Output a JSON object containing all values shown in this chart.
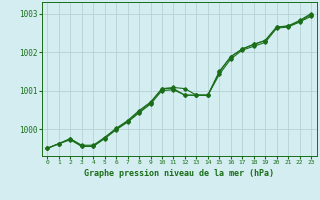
{
  "xlabel": "Graphe pression niveau de la mer (hPa)",
  "xlim": [
    -0.5,
    23.5
  ],
  "ylim": [
    999.3,
    1003.3
  ],
  "yticks": [
    1000,
    1001,
    1002,
    1003
  ],
  "xticks": [
    0,
    1,
    2,
    3,
    4,
    5,
    6,
    7,
    8,
    9,
    10,
    11,
    12,
    13,
    14,
    15,
    16,
    17,
    18,
    19,
    20,
    21,
    22,
    23
  ],
  "background_color": "#d4edf0",
  "grid_color": "#b0cdd0",
  "line_color": "#1a6e1a",
  "line1": {
    "x": [
      0,
      1,
      2,
      3,
      4,
      5,
      6,
      7,
      8,
      9,
      10,
      11,
      12,
      13,
      14,
      15,
      16,
      17,
      18,
      19,
      20,
      21,
      22,
      23
    ],
    "y": [
      999.5,
      999.62,
      999.75,
      999.58,
      999.58,
      999.78,
      1000.0,
      1000.2,
      1000.45,
      1000.68,
      1001.05,
      1001.08,
      1001.05,
      1000.88,
      1000.88,
      1001.5,
      1001.88,
      1002.08,
      1002.2,
      1002.3,
      1002.65,
      1002.68,
      1002.82,
      1003.0
    ]
  },
  "line2": {
    "x": [
      0,
      1,
      2,
      3,
      4,
      5,
      6,
      7,
      8,
      9,
      10,
      11,
      12,
      13,
      14,
      15,
      16,
      17,
      18,
      19,
      20,
      21,
      22,
      23
    ],
    "y": [
      999.5,
      999.62,
      999.72,
      999.55,
      999.55,
      999.75,
      999.98,
      1000.18,
      1000.42,
      1000.65,
      1001.0,
      1001.02,
      1000.88,
      1000.88,
      1000.88,
      1001.42,
      1001.82,
      1002.05,
      1002.15,
      1002.25,
      1002.62,
      1002.65,
      1002.78,
      1002.93
    ]
  },
  "line3": {
    "x": [
      0,
      1,
      2,
      3,
      4,
      5,
      6,
      7,
      8,
      9,
      10,
      11,
      12,
      13,
      14,
      15,
      16,
      17,
      18,
      19,
      20,
      21,
      22,
      23
    ],
    "y": [
      999.5,
      999.62,
      999.75,
      999.55,
      999.55,
      999.78,
      1000.02,
      1000.22,
      1000.48,
      1000.7,
      1001.05,
      1001.05,
      1000.88,
      1000.88,
      1000.88,
      1001.48,
      1001.88,
      1002.08,
      1002.2,
      1002.3,
      1002.65,
      1002.67,
      1002.8,
      1002.97
    ]
  }
}
